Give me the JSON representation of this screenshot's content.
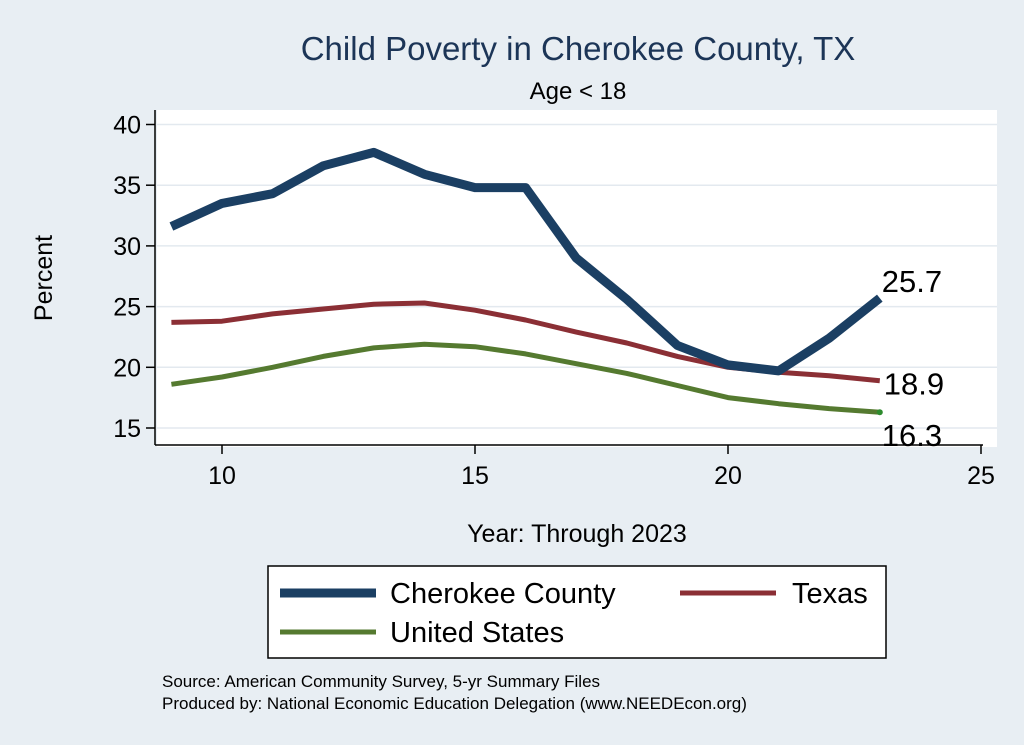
{
  "chart_data": {
    "type": "line",
    "title": "Child Poverty in Cherokee County, TX",
    "subtitle": "Age < 18",
    "xlabel": "Year: Through 2023",
    "ylabel": "Percent",
    "xlim": [
      9,
      25
    ],
    "ylim": [
      14,
      41
    ],
    "x_ticks": [
      10,
      15,
      20,
      25
    ],
    "y_ticks": [
      15,
      20,
      25,
      30,
      35,
      40
    ],
    "grid": true,
    "legend_position": "bottom",
    "series": [
      {
        "name": "Cherokee County",
        "color": "#1b3f63",
        "x": [
          9,
          10,
          11,
          12,
          13,
          14,
          15,
          16,
          17,
          18,
          19,
          20,
          21,
          22,
          23
        ],
        "y": [
          31.6,
          33.5,
          34.3,
          36.6,
          37.7,
          35.9,
          34.8,
          34.8,
          29.0,
          25.6,
          21.8,
          20.2,
          19.7,
          22.4,
          25.7
        ],
        "end_label": "25.7"
      },
      {
        "name": "Texas",
        "color": "#8b2f35",
        "x": [
          9,
          10,
          11,
          12,
          13,
          14,
          15,
          16,
          17,
          18,
          19,
          20,
          21,
          22,
          23
        ],
        "y": [
          23.7,
          23.8,
          24.4,
          24.8,
          25.2,
          25.3,
          24.7,
          23.9,
          22.9,
          22.0,
          20.9,
          20.0,
          19.6,
          19.3,
          18.9
        ],
        "end_label": "18.9"
      },
      {
        "name": "United States",
        "color": "#557a30",
        "x": [
          9,
          10,
          11,
          12,
          13,
          14,
          15,
          16,
          17,
          18,
          19,
          20,
          21,
          22,
          23
        ],
        "y": [
          18.6,
          19.2,
          20.0,
          20.9,
          21.6,
          21.9,
          21.7,
          21.1,
          20.3,
          19.5,
          18.5,
          17.5,
          17.0,
          16.6,
          16.3
        ],
        "end_label": "16.3"
      }
    ]
  },
  "source_line": "Source: American Community Survey, 5-yr Summary Files",
  "produced_line": "Produced by: National Economic Education Delegation (www.NEEDEcon.org)",
  "colors": {
    "background": "#e8eef3",
    "plot_area": "#ffffff",
    "grid": "#e8eef3",
    "title": "#1c3557"
  }
}
